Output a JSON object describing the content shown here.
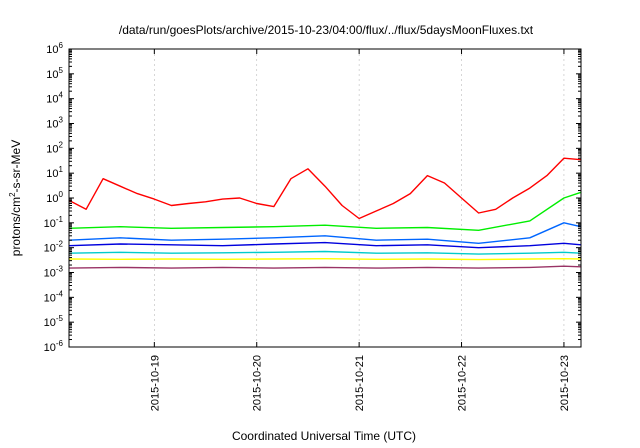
{
  "chart_data": {
    "type": "line",
    "title": "/data/run/goesPlots/archive/2015-10-23/04:00/flux/../flux/5daysMoonFluxes.txt",
    "xlabel": "Coordinated Universal Time (UTC)",
    "ylabel_parts": {
      "base": "protons/cm",
      "exp": "2",
      "rest": "-s-sr-MeV"
    },
    "y_scale": "log",
    "ylim": [
      1e-06,
      1000000.0
    ],
    "y_ticks": [
      {
        "value": 1e-06,
        "base": "10",
        "exp": "-6"
      },
      {
        "value": 1e-05,
        "base": "10",
        "exp": "-5"
      },
      {
        "value": 0.0001,
        "base": "10",
        "exp": "-4"
      },
      {
        "value": 0.001,
        "base": "10",
        "exp": "-3"
      },
      {
        "value": 0.01,
        "base": "10",
        "exp": "-2"
      },
      {
        "value": 0.1,
        "base": "10",
        "exp": "-1"
      },
      {
        "value": 1.0,
        "base": "10",
        "exp": "0"
      },
      {
        "value": 10.0,
        "base": "10",
        "exp": "1"
      },
      {
        "value": 100.0,
        "base": "10",
        "exp": "2"
      },
      {
        "value": 1000.0,
        "base": "10",
        "exp": "3"
      },
      {
        "value": 10000.0,
        "base": "10",
        "exp": "4"
      },
      {
        "value": 100000.0,
        "base": "10",
        "exp": "5"
      },
      {
        "value": 1000000.0,
        "base": "10",
        "exp": "6"
      }
    ],
    "xlim": [
      "2015-10-18 04:00",
      "2015-10-23 04:00"
    ],
    "x_ticks": [
      "2015-10-19",
      "2015-10-20",
      "2015-10-21",
      "2015-10-22",
      "2015-10-23"
    ],
    "grid": "vertical at date ticks",
    "series": [
      {
        "color": "#ff0000",
        "x": [
          "2015-10-18 04:00",
          "2015-10-18 08:00",
          "2015-10-18 12:00",
          "2015-10-18 16:00",
          "2015-10-18 20:00",
          "2015-10-19 00:00",
          "2015-10-19 04:00",
          "2015-10-19 08:00",
          "2015-10-19 12:00",
          "2015-10-19 16:00",
          "2015-10-19 20:00",
          "2015-10-20 00:00",
          "2015-10-20 04:00",
          "2015-10-20 08:00",
          "2015-10-20 12:00",
          "2015-10-20 16:00",
          "2015-10-20 20:00",
          "2015-10-21 00:00",
          "2015-10-21 04:00",
          "2015-10-21 08:00",
          "2015-10-21 12:00",
          "2015-10-21 16:00",
          "2015-10-21 20:00",
          "2015-10-22 00:00",
          "2015-10-22 04:00",
          "2015-10-22 08:00",
          "2015-10-22 12:00",
          "2015-10-22 16:00",
          "2015-10-22 20:00",
          "2015-10-23 00:00",
          "2015-10-23 04:00"
        ],
        "y": [
          0.8,
          0.35,
          6.0,
          3.0,
          1.5,
          0.9,
          0.5,
          0.6,
          0.7,
          0.9,
          1.0,
          0.6,
          0.45,
          6.0,
          15.0,
          3.0,
          0.5,
          0.15,
          0.3,
          0.6,
          1.5,
          8.0,
          4.0,
          1.0,
          0.25,
          0.35,
          1.0,
          2.5,
          8.0,
          40.0,
          35.0
        ]
      },
      {
        "color": "#00ee00",
        "x": [
          "2015-10-18 04:00",
          "2015-10-18 16:00",
          "2015-10-19 04:00",
          "2015-10-19 16:00",
          "2015-10-20 04:00",
          "2015-10-20 16:00",
          "2015-10-21 04:00",
          "2015-10-21 16:00",
          "2015-10-22 04:00",
          "2015-10-22 16:00",
          "2015-10-23 00:00",
          "2015-10-23 04:00"
        ],
        "y": [
          0.06,
          0.07,
          0.06,
          0.065,
          0.07,
          0.08,
          0.06,
          0.065,
          0.05,
          0.12,
          1.0,
          1.7
        ]
      },
      {
        "color": "#0066ff",
        "x": [
          "2015-10-18 04:00",
          "2015-10-18 16:00",
          "2015-10-19 04:00",
          "2015-10-19 16:00",
          "2015-10-20 04:00",
          "2015-10-20 16:00",
          "2015-10-21 04:00",
          "2015-10-21 16:00",
          "2015-10-22 04:00",
          "2015-10-22 16:00",
          "2015-10-23 00:00",
          "2015-10-23 04:00"
        ],
        "y": [
          0.02,
          0.025,
          0.02,
          0.022,
          0.025,
          0.03,
          0.02,
          0.022,
          0.015,
          0.025,
          0.1,
          0.07
        ]
      },
      {
        "color": "#0000dd",
        "x": [
          "2015-10-18 04:00",
          "2015-10-18 16:00",
          "2015-10-19 04:00",
          "2015-10-19 16:00",
          "2015-10-20 04:00",
          "2015-10-20 16:00",
          "2015-10-21 04:00",
          "2015-10-21 16:00",
          "2015-10-22 04:00",
          "2015-10-22 16:00",
          "2015-10-23 00:00",
          "2015-10-23 04:00"
        ],
        "y": [
          0.012,
          0.014,
          0.013,
          0.012,
          0.014,
          0.016,
          0.012,
          0.013,
          0.01,
          0.012,
          0.015,
          0.013
        ]
      },
      {
        "color": "#00cccc",
        "x": [
          "2015-10-18 04:00",
          "2015-10-18 16:00",
          "2015-10-19 04:00",
          "2015-10-19 16:00",
          "2015-10-20 04:00",
          "2015-10-20 16:00",
          "2015-10-21 04:00",
          "2015-10-21 16:00",
          "2015-10-22 04:00",
          "2015-10-22 16:00",
          "2015-10-23 00:00",
          "2015-10-23 04:00"
        ],
        "y": [
          0.006,
          0.0065,
          0.006,
          0.0062,
          0.0065,
          0.007,
          0.006,
          0.0062,
          0.0055,
          0.006,
          0.0065,
          0.006
        ]
      },
      {
        "color": "#ffff00",
        "x": [
          "2015-10-18 04:00",
          "2015-10-18 16:00",
          "2015-10-19 04:00",
          "2015-10-19 16:00",
          "2015-10-20 04:00",
          "2015-10-20 16:00",
          "2015-10-21 04:00",
          "2015-10-21 16:00",
          "2015-10-22 04:00",
          "2015-10-22 16:00",
          "2015-10-23 00:00",
          "2015-10-23 04:00"
        ],
        "y": [
          0.0035,
          0.0034,
          0.0035,
          0.0034,
          0.0035,
          0.0036,
          0.0034,
          0.0035,
          0.0033,
          0.0035,
          0.0036,
          0.0035
        ]
      },
      {
        "color": "#993366",
        "x": [
          "2015-10-18 04:00",
          "2015-10-18 16:00",
          "2015-10-19 04:00",
          "2015-10-19 16:00",
          "2015-10-20 04:00",
          "2015-10-20 16:00",
          "2015-10-21 04:00",
          "2015-10-21 16:00",
          "2015-10-22 04:00",
          "2015-10-22 16:00",
          "2015-10-23 00:00",
          "2015-10-23 04:00"
        ],
        "y": [
          0.0015,
          0.0016,
          0.0015,
          0.0016,
          0.0015,
          0.0016,
          0.0015,
          0.0016,
          0.0015,
          0.0016,
          0.0018,
          0.0017
        ]
      }
    ]
  }
}
